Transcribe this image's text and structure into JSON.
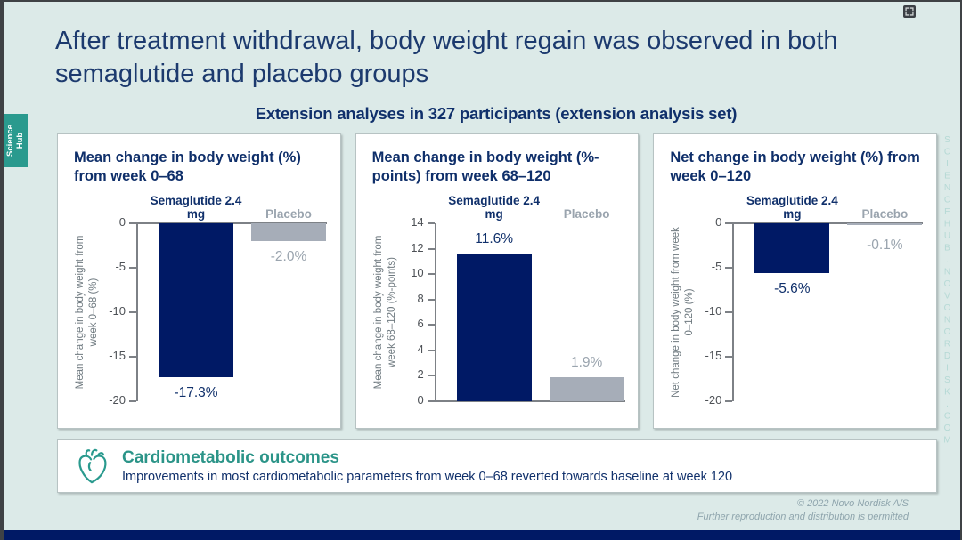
{
  "page": {
    "title": "After treatment withdrawal, body weight regain was observed in both semaglutide and placebo groups",
    "subtitle": "Extension analyses in 327 participants (extension analysis set)"
  },
  "branding": {
    "side_tab": "Science Hub",
    "vertical_url": "SCIENCEHUB.NOVONORDISK.COM"
  },
  "icons": {
    "top_right": "fullscreen-expand-icon",
    "outcomes": "heart-outline-icon"
  },
  "chart_data": [
    {
      "type": "bar",
      "title": "Mean change in body weight (%) from week 0–68",
      "categories": [
        "Semaglutide 2.4 mg",
        "Placebo"
      ],
      "values": [
        -17.3,
        -2.0
      ],
      "value_labels": [
        "-17.3%",
        "-2.0%"
      ],
      "ylabel": "Mean change in body weight from week 0–68 (%)",
      "ylim": [
        -20,
        0
      ],
      "yticks": [
        0,
        -5,
        -10,
        -15,
        -20
      ],
      "bar_colors": [
        "#001965",
        "#a6adb8"
      ],
      "grid": false,
      "legend": "none"
    },
    {
      "type": "bar",
      "title": "Mean change in body weight (%-points) from week 68–120",
      "categories": [
        "Semaglutide 2.4 mg",
        "Placebo"
      ],
      "values": [
        11.6,
        1.9
      ],
      "value_labels": [
        "11.6%",
        "1.9%"
      ],
      "ylabel": "Mean change in body weight from week 68–120 (%-points)",
      "ylim": [
        0,
        14
      ],
      "yticks": [
        14,
        12,
        10,
        8,
        6,
        4,
        2,
        0
      ],
      "bar_colors": [
        "#001965",
        "#a6adb8"
      ],
      "grid": false,
      "legend": "none"
    },
    {
      "type": "bar",
      "title": "Net change in body weight (%) from week 0–120",
      "categories": [
        "Semaglutide 2.4 mg",
        "Placebo"
      ],
      "values": [
        -5.6,
        -0.1
      ],
      "value_labels": [
        "-5.6%",
        "-0.1%"
      ],
      "ylabel": "Net change in body weight from week 0–120 (%)",
      "ylim": [
        -20,
        0
      ],
      "yticks": [
        0,
        -5,
        -10,
        -15,
        -20
      ],
      "bar_colors": [
        "#001965",
        "#a6adb8"
      ],
      "grid": false,
      "legend": "none"
    }
  ],
  "outcomes": {
    "title": "Cardiometabolic outcomes",
    "text": "Improvements in most cardiometabolic parameters from week 0–68 reverted towards baseline at week 120"
  },
  "footer": {
    "copyright": "© 2022 Novo Nordisk A/S",
    "permission": "Further reproduction and distribution is permitted"
  },
  "colors": {
    "background": "#dceae8",
    "bar_navy": "#001965",
    "bar_gray": "#a6adb8",
    "title_navy": "#1c3a6e",
    "heading_navy": "#0f2f6a",
    "teal": "#2a9a8e",
    "teal_text": "#2b9488",
    "axis_gray": "#7d8186",
    "muted_gray": "#9aa4ae",
    "url_teal": "#b5d9d5",
    "footer_gray": "#8fa5ad",
    "bottom_bar": "#001965"
  }
}
